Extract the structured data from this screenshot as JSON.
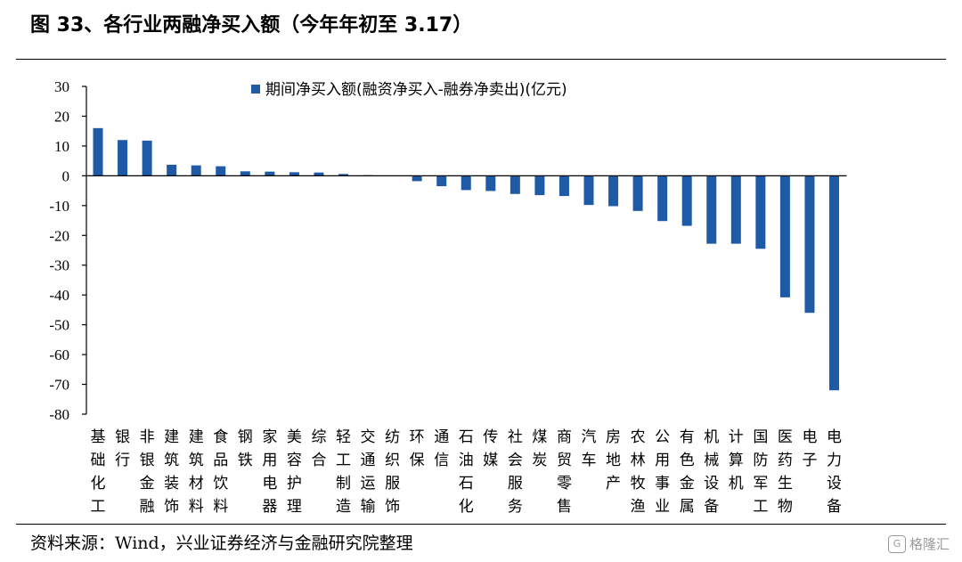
{
  "figure": {
    "title": "图 33、各行业两融净买入额（今年年初至 3.17）",
    "source": "资料来源：Wind，兴业证券经济与金融研究院整理",
    "watermark": "格隆汇",
    "watermark_logo": "G"
  },
  "chart_data": {
    "type": "bar",
    "title": "",
    "xlabel": "",
    "ylabel": "",
    "ylim": [
      -80,
      30
    ],
    "yticks": [
      30,
      20,
      10,
      0,
      -10,
      -20,
      -30,
      -40,
      -50,
      -60,
      -70,
      -80
    ],
    "grid": false,
    "legend_position": "top-center",
    "bar_color": "#1f5aa6",
    "categories": [
      "基础化工",
      "银行",
      "非银金融",
      "建筑装饰",
      "建筑材料",
      "食品饮料",
      "钢铁",
      "家用电器",
      "美容护理",
      "综合",
      "轻工制造",
      "交通运输",
      "纺织服饰",
      "环保",
      "通信",
      "石油石化",
      "传媒",
      "社会服务",
      "煤炭",
      "商贸零售",
      "汽车",
      "房地产",
      "农林牧渔",
      "公用事业",
      "有色金属",
      "机械设备",
      "计算机",
      "国防军工",
      "医药生物",
      "电子",
      "电力设备"
    ],
    "series": [
      {
        "name": "期间净买入额(融资净买入-融券净卖出)(亿元)",
        "values": [
          16,
          12,
          11.8,
          3.7,
          3.5,
          3.2,
          1.5,
          1.4,
          1.2,
          1.1,
          0.6,
          0.2,
          0.1,
          -1.8,
          -3.5,
          -4.8,
          -5.1,
          -6.1,
          -6.5,
          -6.8,
          -9.8,
          -10.2,
          -11.8,
          -15.2,
          -16.8,
          -22.8,
          -22.8,
          -24.5,
          -40.8,
          -46,
          -72
        ]
      }
    ]
  }
}
